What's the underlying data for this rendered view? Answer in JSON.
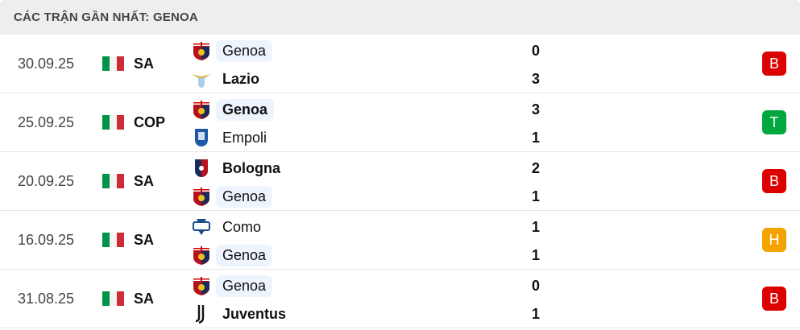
{
  "title": "CÁC TRẬN GẦN NHẤT: GENOA",
  "colors": {
    "loss": "#dd0000",
    "win": "#00a83f",
    "draw": "#f5a300",
    "highlight": "#eef4fd"
  },
  "matches": [
    {
      "date": "30.09.25",
      "comp": "SA",
      "home": {
        "name": "Genoa",
        "score": "0",
        "logo": "genoa-crest",
        "bold": false,
        "hl": true
      },
      "away": {
        "name": "Lazio",
        "score": "3",
        "logo": "lazio-eagle",
        "bold": true,
        "hl": false
      },
      "result": "B",
      "result_type": "loss"
    },
    {
      "date": "25.09.25",
      "comp": "COP",
      "home": {
        "name": "Genoa",
        "score": "3",
        "logo": "genoa-crest",
        "bold": true,
        "hl": true
      },
      "away": {
        "name": "Empoli",
        "score": "1",
        "logo": "empoli-crest",
        "bold": false,
        "hl": false
      },
      "result": "T",
      "result_type": "win"
    },
    {
      "date": "20.09.25",
      "comp": "SA",
      "home": {
        "name": "Bologna",
        "score": "2",
        "logo": "bologna-crest",
        "bold": true,
        "hl": false
      },
      "away": {
        "name": "Genoa",
        "score": "1",
        "logo": "genoa-crest",
        "bold": false,
        "hl": true
      },
      "result": "B",
      "result_type": "loss"
    },
    {
      "date": "16.09.25",
      "comp": "SA",
      "home": {
        "name": "Como",
        "score": "1",
        "logo": "como-crest",
        "bold": false,
        "hl": false
      },
      "away": {
        "name": "Genoa",
        "score": "1",
        "logo": "genoa-crest",
        "bold": false,
        "hl": true
      },
      "result": "H",
      "result_type": "draw"
    },
    {
      "date": "31.08.25",
      "comp": "SA",
      "home": {
        "name": "Genoa",
        "score": "0",
        "logo": "genoa-crest",
        "bold": false,
        "hl": true
      },
      "away": {
        "name": "Juventus",
        "score": "1",
        "logo": "juventus-crest",
        "bold": true,
        "hl": false
      },
      "result": "B",
      "result_type": "loss"
    }
  ]
}
